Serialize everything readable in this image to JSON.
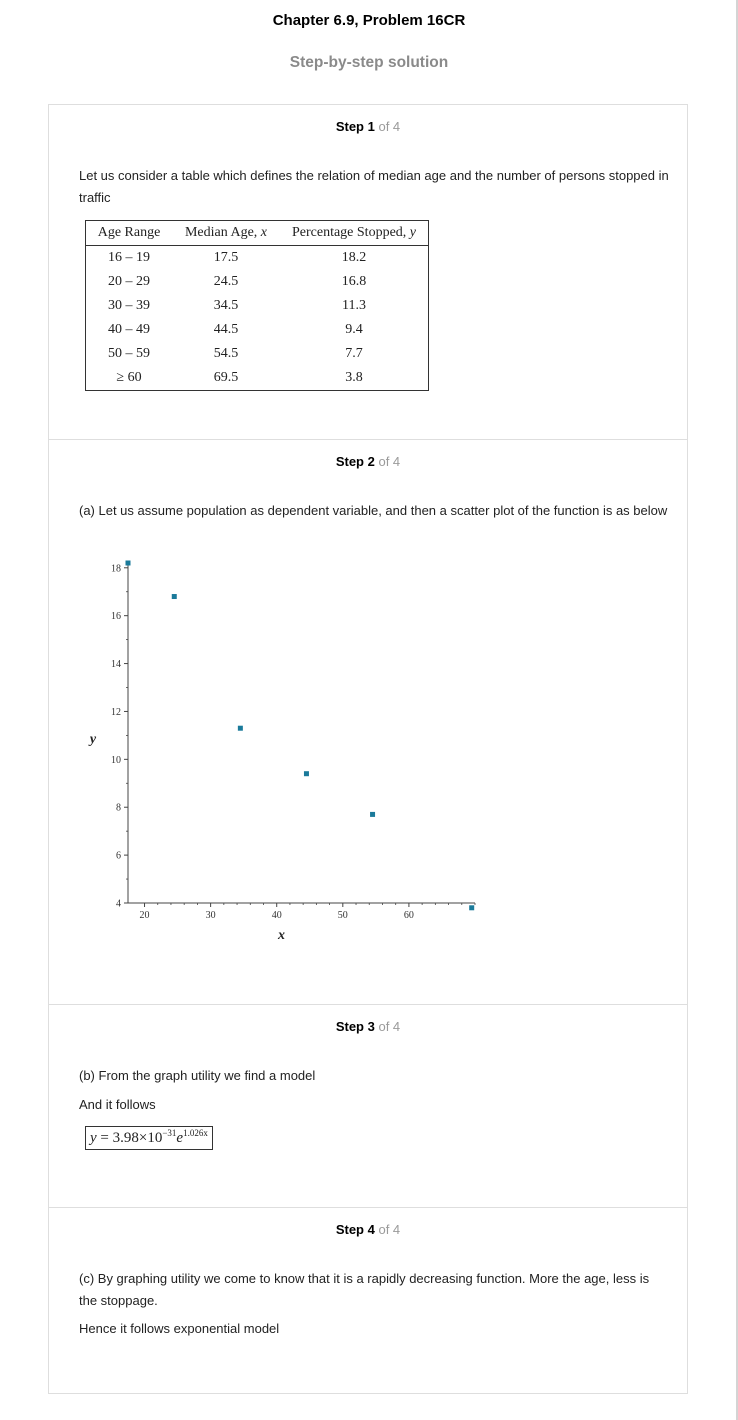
{
  "header": {
    "chapter_title": "Chapter 6.9, Problem 16CR",
    "subtitle": "Step-by-step solution"
  },
  "steps": [
    {
      "label": "Step 1",
      "of": "of 4",
      "text": "Let us consider a table which defines the relation of median age and the number of persons stopped in traffic",
      "table": {
        "headers": [
          "Age Range",
          "Median Age, x",
          "Percentage Stopped, y"
        ],
        "rows": [
          [
            "16 – 19",
            "17.5",
            "18.2"
          ],
          [
            "20 – 29",
            "24.5",
            "16.8"
          ],
          [
            "30 – 39",
            "34.5",
            "11.3"
          ],
          [
            "40 – 49",
            "44.5",
            "9.4"
          ],
          [
            "50 – 59",
            "54.5",
            "7.7"
          ],
          [
            "≥ 60",
            "69.5",
            "3.8"
          ]
        ]
      }
    },
    {
      "label": "Step 2",
      "of": "of 4",
      "text": "(a) Let us assume population as dependent variable, and then a scatter plot of the function is as below"
    },
    {
      "label": "Step 3",
      "of": "of 4",
      "text1": "(b) From the graph utility we find a model",
      "text2": "And it follows",
      "formula": {
        "lhs": "y",
        "eq": " = 3.98×10",
        "exp1": "−31",
        "base": "e",
        "exp2": "1.026x"
      }
    },
    {
      "label": "Step 4",
      "of": "of 4",
      "text1": "(c) By graphing utility we come to know that it is a rapidly decreasing function. More the age, less is the stoppage.",
      "text2": "Hence it follows exponential model"
    }
  ],
  "chart_data": {
    "type": "scatter",
    "x": [
      17.5,
      24.5,
      34.5,
      44.5,
      54.5,
      69.5
    ],
    "y": [
      18.2,
      16.8,
      11.3,
      9.4,
      7.7,
      3.8
    ],
    "xlabel": "x",
    "ylabel": "y",
    "xlim": [
      17.5,
      70
    ],
    "ylim": [
      4,
      18.2
    ],
    "xticks": [
      20,
      30,
      40,
      50,
      60
    ],
    "yticks": [
      4,
      6,
      8,
      10,
      12,
      14,
      16,
      18
    ],
    "marker_color": "#1a7a9a",
    "grid": false
  }
}
